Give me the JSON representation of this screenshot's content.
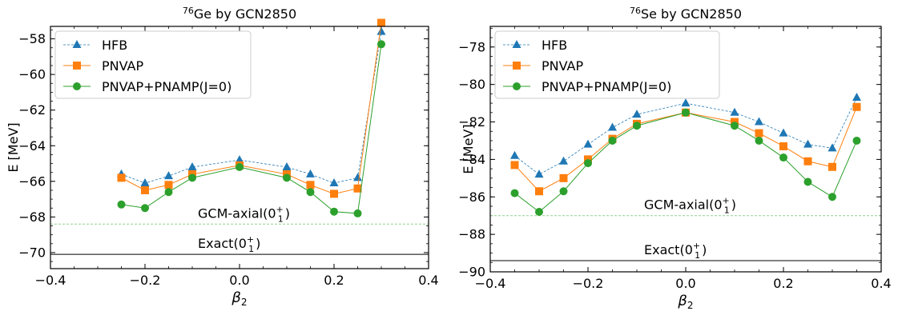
{
  "colors": {
    "hfb": "#1f77b4",
    "pnvap": "#ff7f0e",
    "pnamp": "#2ca02c",
    "gcm_line": "#8fd18f",
    "exact_line": "#000000"
  },
  "chart_data": [
    {
      "type": "line",
      "title": {
        "sup": "76",
        "text": "Ge by GCN2850"
      },
      "xlabel": {
        "main": "β",
        "sub": "2"
      },
      "ylabel": "E [MeV]",
      "xlim": [
        -0.4,
        0.4
      ],
      "ylim": [
        -70.9,
        -57.3
      ],
      "xticks": [
        -0.4,
        -0.2,
        0.0,
        0.2,
        0.4
      ],
      "xtick_labels": [
        "−0.4",
        "−0.2",
        "0.0",
        "0.2",
        "0.4"
      ],
      "yticks": [
        -70,
        -68,
        -66,
        -64,
        -62,
        -60,
        -58
      ],
      "ytick_labels": [
        "−70",
        "−68",
        "−66",
        "−64",
        "−62",
        "−60",
        "−58"
      ],
      "legend_position": "upper-left",
      "series": [
        {
          "name": "HFB",
          "marker": "triangle",
          "x": [
            -0.25,
            -0.2,
            -0.15,
            -0.1,
            0.0,
            0.1,
            0.15,
            0.2,
            0.25,
            0.3
          ],
          "y": [
            -65.6,
            -66.1,
            -65.7,
            -65.2,
            -64.8,
            -65.2,
            -65.6,
            -66.1,
            -65.8,
            -57.6
          ]
        },
        {
          "name": "PNVAP",
          "marker": "square",
          "x": [
            -0.25,
            -0.2,
            -0.15,
            -0.1,
            0.0,
            0.1,
            0.15,
            0.2,
            0.25,
            0.3
          ],
          "y": [
            -65.8,
            -66.5,
            -66.2,
            -65.6,
            -65.1,
            -65.6,
            -66.2,
            -66.7,
            -66.4,
            -57.1
          ]
        },
        {
          "name": "PNVAP+PNAMP(J=0)",
          "marker": "circle",
          "x": [
            -0.25,
            -0.2,
            -0.15,
            -0.1,
            0.0,
            0.1,
            0.15,
            0.2,
            0.25,
            0.3
          ],
          "y": [
            -67.3,
            -67.5,
            -66.6,
            -65.8,
            -65.2,
            -65.8,
            -66.6,
            -67.7,
            -67.8,
            -58.3
          ]
        }
      ],
      "reference_lines": [
        {
          "kind": "gcm",
          "y": -68.4,
          "label": "GCM-axial(0",
          "sup": "+",
          "sub": "1",
          "close": ")"
        },
        {
          "kind": "exact",
          "y": -70.1,
          "label": "Exact(0",
          "sup": "+",
          "sub": "1",
          "close": ")"
        }
      ]
    },
    {
      "type": "line",
      "title": {
        "sup": "76",
        "text": "Se by GCN2850"
      },
      "xlabel": {
        "main": "β",
        "sub": "2"
      },
      "ylabel": "E [MeV]",
      "xlim": [
        -0.4,
        0.4
      ],
      "ylim": [
        -90.0,
        -76.9
      ],
      "xticks": [
        -0.4,
        -0.2,
        0.0,
        0.2,
        0.4
      ],
      "xtick_labels": [
        "−0.4",
        "−0.2",
        "0.0",
        "0.2",
        "0.4"
      ],
      "yticks": [
        -90,
        -88,
        -86,
        -84,
        -82,
        -80,
        -78
      ],
      "ytick_labels": [
        "−90",
        "−88",
        "−86",
        "−84",
        "−82",
        "−80",
        "−78"
      ],
      "legend_position": "upper-left",
      "series": [
        {
          "name": "HFB",
          "marker": "triangle",
          "x": [
            -0.35,
            -0.3,
            -0.25,
            -0.2,
            -0.15,
            -0.1,
            0.0,
            0.1,
            0.15,
            0.2,
            0.25,
            0.3,
            0.35
          ],
          "y": [
            -83.8,
            -84.8,
            -84.1,
            -83.2,
            -82.3,
            -81.6,
            -81.0,
            -81.5,
            -82.0,
            -82.6,
            -83.2,
            -83.4,
            -80.7
          ]
        },
        {
          "name": "PNVAP",
          "marker": "square",
          "x": [
            -0.35,
            -0.3,
            -0.25,
            -0.2,
            -0.15,
            -0.1,
            0.0,
            0.1,
            0.15,
            0.2,
            0.25,
            0.3,
            0.35
          ],
          "y": [
            -84.3,
            -85.7,
            -85.0,
            -84.0,
            -82.9,
            -82.1,
            -81.5,
            -82.0,
            -82.6,
            -83.3,
            -84.1,
            -84.4,
            -81.2
          ]
        },
        {
          "name": "PNVAP+PNAMP(J=0)",
          "marker": "circle",
          "x": [
            -0.35,
            -0.3,
            -0.25,
            -0.2,
            -0.15,
            -0.1,
            0.0,
            0.1,
            0.15,
            0.2,
            0.25,
            0.3,
            0.35
          ],
          "y": [
            -85.8,
            -86.8,
            -85.7,
            -84.2,
            -83.0,
            -82.2,
            -81.5,
            -82.2,
            -83.0,
            -83.9,
            -85.2,
            -86.0,
            -83.0
          ]
        }
      ],
      "reference_lines": [
        {
          "kind": "gcm",
          "y": -87.0,
          "label": "GCM-axial(0",
          "sup": "+",
          "sub": "1",
          "close": ")"
        },
        {
          "kind": "exact",
          "y": -89.4,
          "label": "Exact(0",
          "sup": "+",
          "sub": "1",
          "close": ")"
        }
      ]
    }
  ]
}
